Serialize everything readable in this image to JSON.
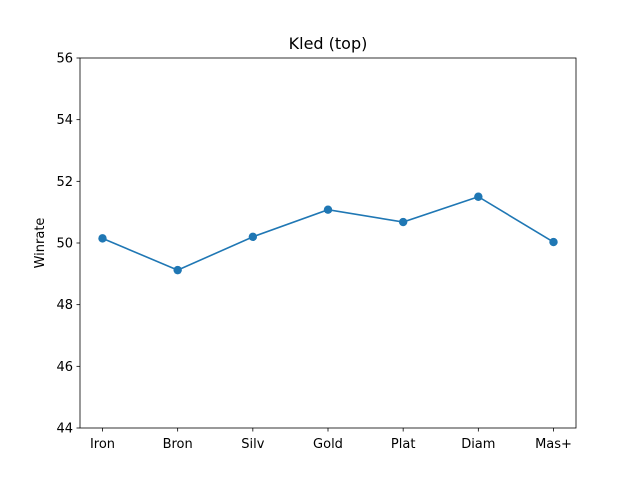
{
  "chart_data": {
    "type": "line",
    "title": "Kled (top)",
    "xlabel": "",
    "ylabel": "Winrate",
    "categories": [
      "Iron",
      "Bron",
      "Silv",
      "Gold",
      "Plat",
      "Diam",
      "Mas+"
    ],
    "series": [
      {
        "values": [
          50.15,
          49.12,
          50.2,
          51.08,
          50.68,
          51.5,
          50.03
        ],
        "color": "#1f77b4"
      }
    ],
    "ylim": [
      44,
      56
    ],
    "yticks": [
      44,
      46,
      48,
      50,
      52,
      54,
      56
    ],
    "grid": false,
    "legend": "none"
  }
}
